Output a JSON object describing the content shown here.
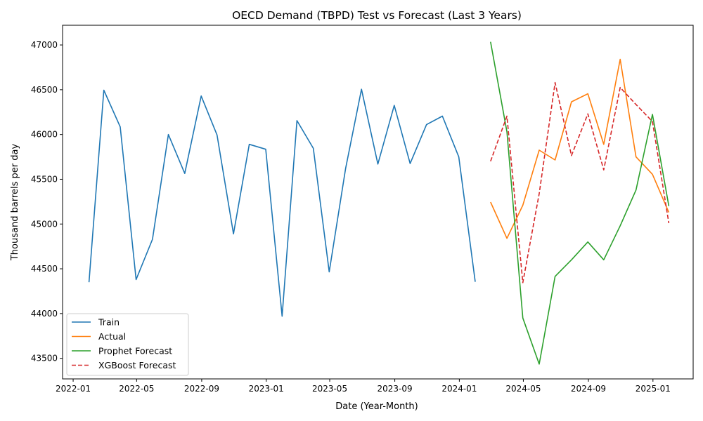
{
  "chart_data": {
    "type": "line",
    "title": "OECD Demand (TBPD) Test vs Forecast (Last 3 Years)",
    "xlabel": "Date (Year-Month)",
    "ylabel": "Thousand barrels per day",
    "xlim": [
      "2021-12-12",
      "2025-03-18"
    ],
    "ylim": [
      43270,
      47220
    ],
    "x_ticks": [
      "2022-01-01",
      "2022-05-01",
      "2022-09-01",
      "2023-01-01",
      "2023-05-01",
      "2023-09-01",
      "2024-01-01",
      "2024-05-01",
      "2024-09-01",
      "2025-01-01"
    ],
    "x_tick_labels": [
      "2022-01",
      "2022-05",
      "2022-09",
      "2023-01",
      "2023-05",
      "2023-09",
      "2024-01",
      "2024-05",
      "2024-09",
      "2025-01"
    ],
    "y_ticks": [
      43500,
      44000,
      44500,
      45000,
      45500,
      46000,
      46500,
      47000
    ],
    "y_tick_labels": [
      "43500",
      "44000",
      "44500",
      "45000",
      "45500",
      "46000",
      "46500",
      "47000"
    ],
    "grid": false,
    "legend_position": "lower-left",
    "series": [
      {
        "name": "Train",
        "color": "#1f77b4",
        "dash": "solid",
        "points": [
          [
            "2022-01-31",
            44350
          ],
          [
            "2022-02-28",
            46495
          ],
          [
            "2022-03-31",
            46085
          ],
          [
            "2022-04-30",
            44380
          ],
          [
            "2022-05-31",
            44830
          ],
          [
            "2022-06-30",
            46000
          ],
          [
            "2022-07-31",
            45565
          ],
          [
            "2022-08-31",
            46430
          ],
          [
            "2022-09-30",
            45995
          ],
          [
            "2022-10-31",
            44890
          ],
          [
            "2022-11-30",
            45890
          ],
          [
            "2022-12-31",
            45835
          ],
          [
            "2023-01-31",
            43970
          ],
          [
            "2023-02-28",
            46155
          ],
          [
            "2023-03-31",
            45845
          ],
          [
            "2023-04-30",
            44465
          ],
          [
            "2023-05-31",
            45620
          ],
          [
            "2023-06-30",
            46505
          ],
          [
            "2023-07-31",
            45670
          ],
          [
            "2023-08-31",
            46325
          ],
          [
            "2023-09-30",
            45675
          ],
          [
            "2023-10-31",
            46110
          ],
          [
            "2023-11-30",
            46205
          ],
          [
            "2023-12-31",
            45750
          ],
          [
            "2024-01-31",
            44355
          ]
        ]
      },
      {
        "name": "Actual",
        "color": "#ff7f0e",
        "dash": "solid",
        "points": [
          [
            "2024-02-29",
            45245
          ],
          [
            "2024-03-31",
            44840
          ],
          [
            "2024-04-30",
            45210
          ],
          [
            "2024-05-31",
            45825
          ],
          [
            "2024-06-30",
            45715
          ],
          [
            "2024-07-31",
            46365
          ],
          [
            "2024-08-31",
            46455
          ],
          [
            "2024-09-30",
            45890
          ],
          [
            "2024-10-31",
            46840
          ],
          [
            "2024-11-30",
            45750
          ],
          [
            "2024-12-31",
            45555
          ],
          [
            "2025-01-31",
            45130
          ]
        ]
      },
      {
        "name": "Prophet Forecast",
        "color": "#2ca02c",
        "dash": "solid",
        "points": [
          [
            "2024-02-29",
            47035
          ],
          [
            "2024-03-31",
            46030
          ],
          [
            "2024-04-30",
            43950
          ],
          [
            "2024-05-31",
            43435
          ],
          [
            "2024-06-30",
            44415
          ],
          [
            "2024-07-31",
            44600
          ],
          [
            "2024-08-31",
            44800
          ],
          [
            "2024-09-30",
            44600
          ],
          [
            "2024-10-31",
            44980
          ],
          [
            "2024-11-30",
            45380
          ],
          [
            "2024-12-31",
            46225
          ],
          [
            "2025-01-31",
            45200
          ]
        ]
      },
      {
        "name": "XGBoost Forecast",
        "color": "#d62728",
        "dash": "dashed",
        "points": [
          [
            "2024-02-29",
            45700
          ],
          [
            "2024-03-31",
            46205
          ],
          [
            "2024-04-30",
            44345
          ],
          [
            "2024-05-31",
            45340
          ],
          [
            "2024-06-30",
            46580
          ],
          [
            "2024-07-31",
            45765
          ],
          [
            "2024-08-31",
            46230
          ],
          [
            "2024-09-30",
            45605
          ],
          [
            "2024-10-31",
            46525
          ],
          [
            "2024-11-30",
            46335
          ],
          [
            "2024-12-31",
            46145
          ],
          [
            "2025-01-31",
            45010
          ]
        ]
      }
    ]
  }
}
